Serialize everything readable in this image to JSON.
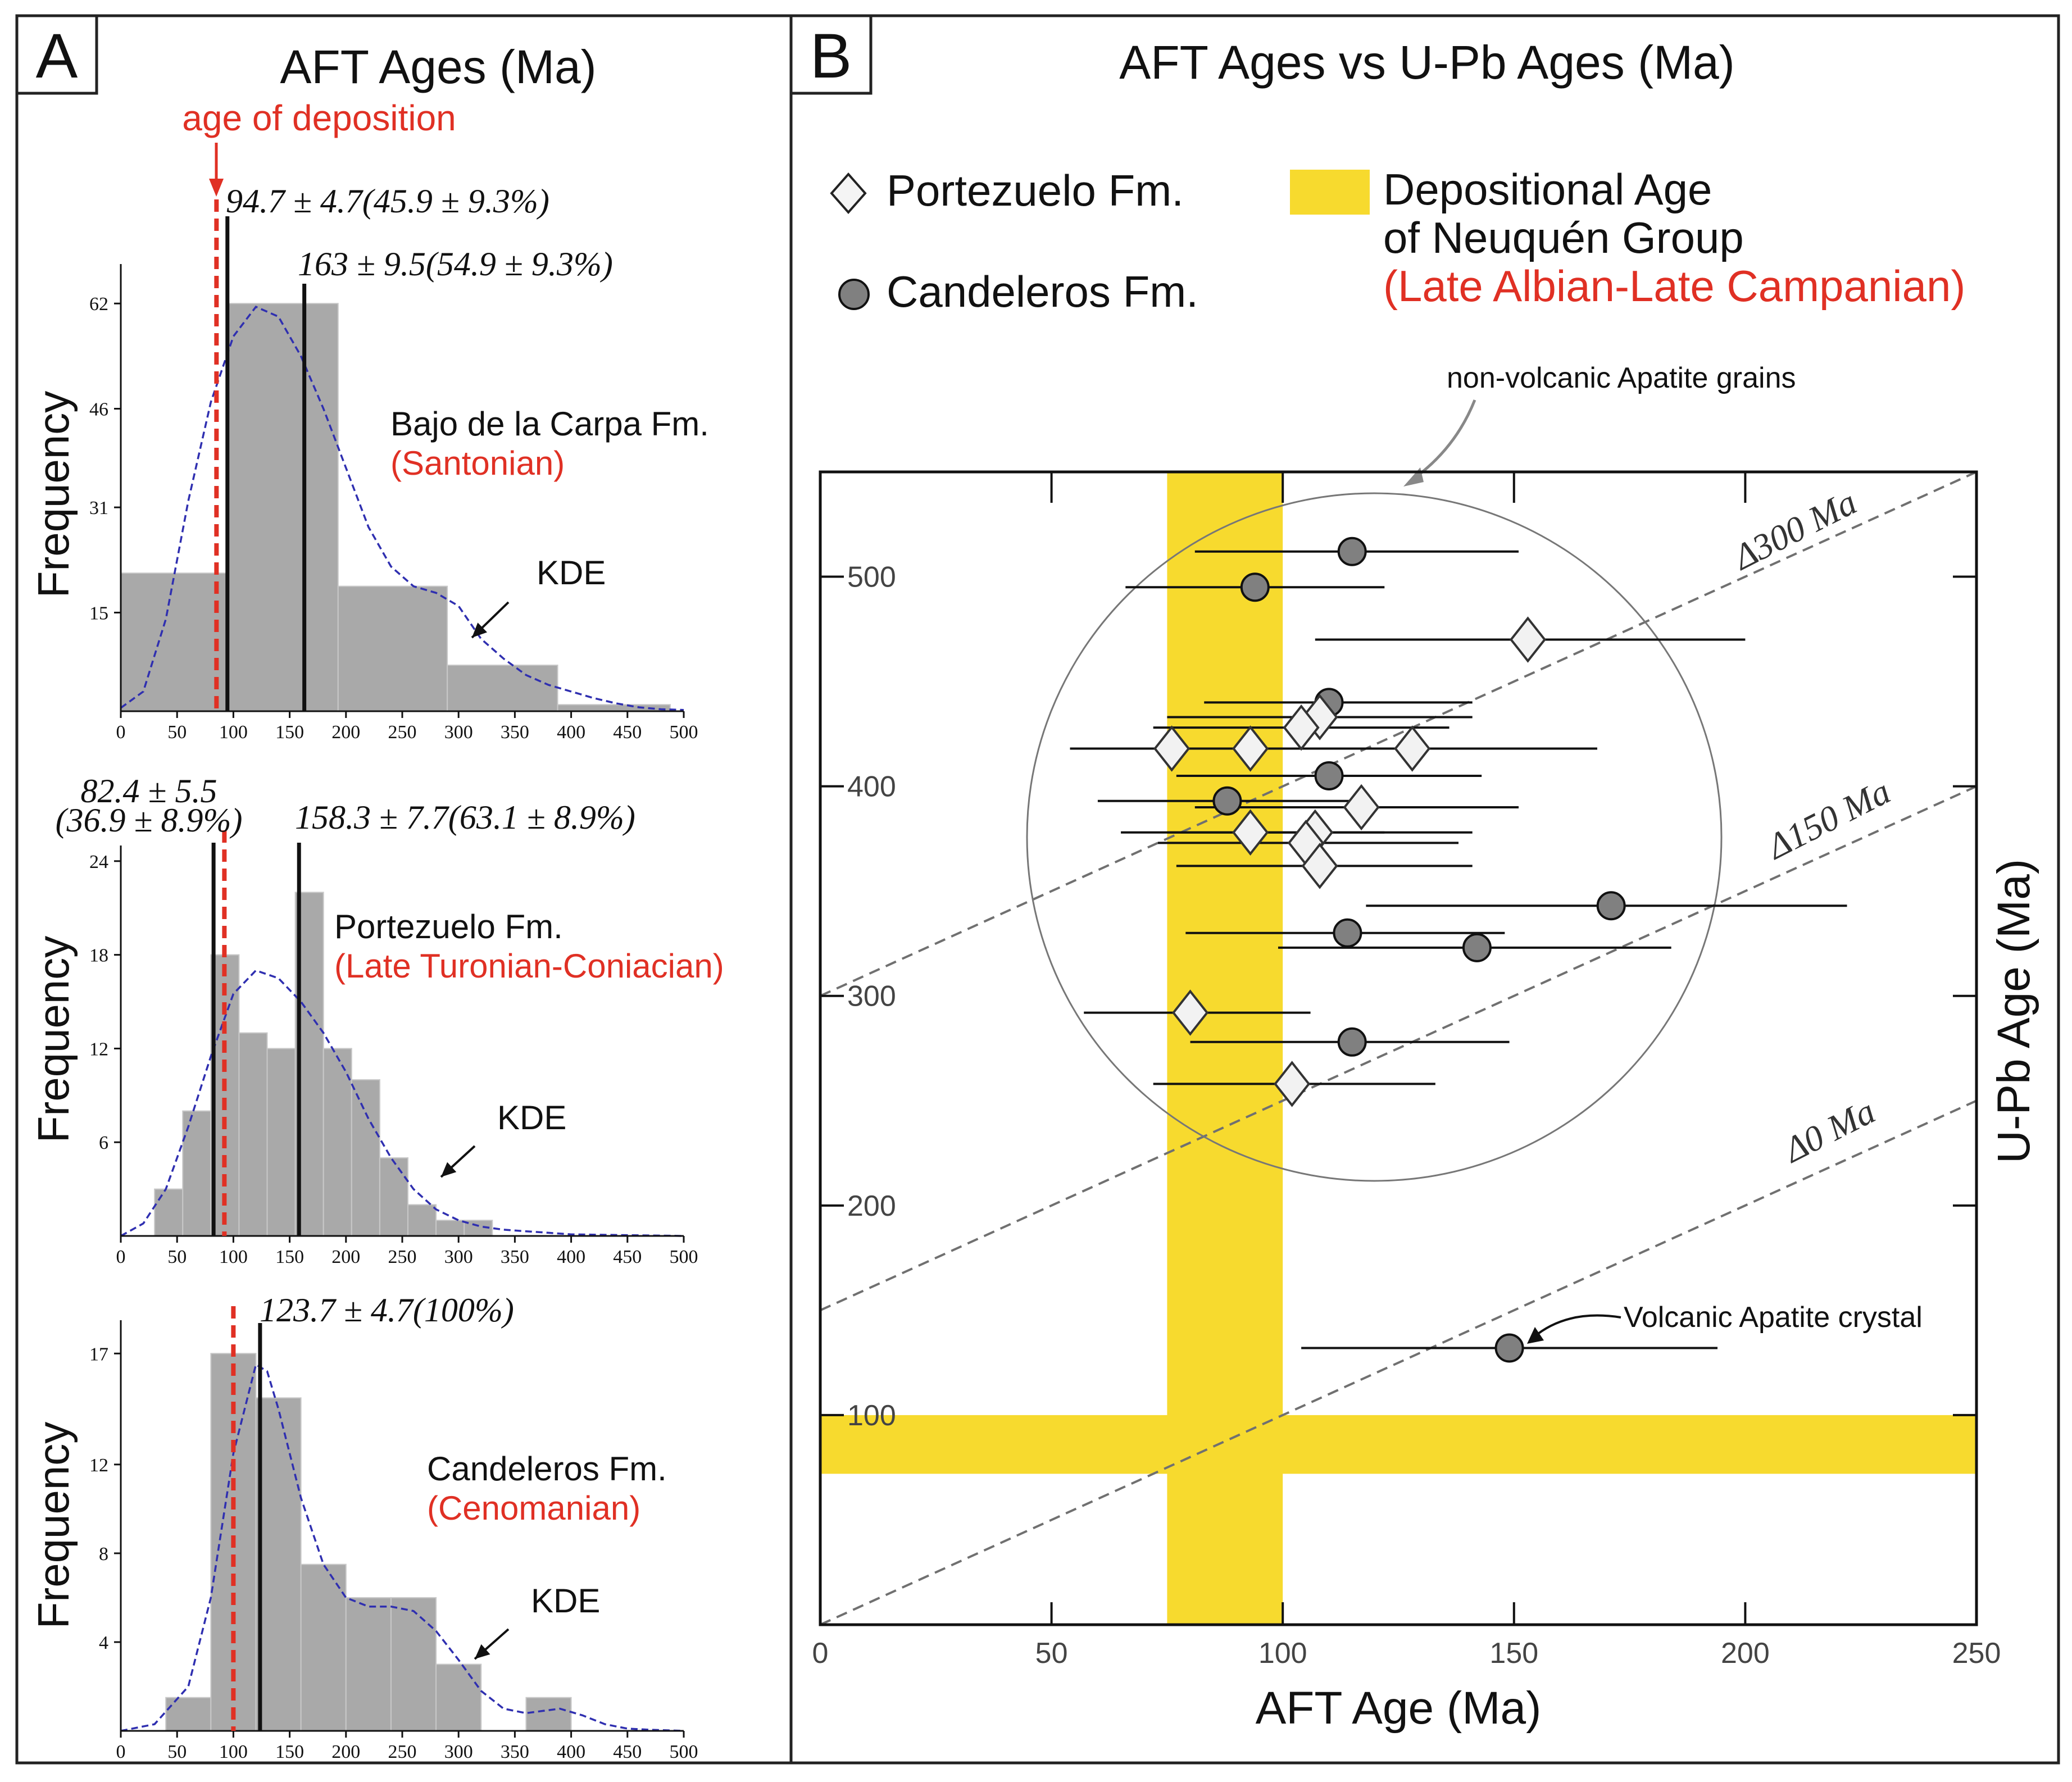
{
  "panel_a": {
    "letter": "A",
    "title": "AFT Ages  (Ma)",
    "deposition_label": "age of deposition",
    "frequency_label": "Frequency",
    "kde_label": "KDE"
  },
  "panel_b": {
    "letter": "B",
    "title": "AFT Ages vs U-Pb Ages (Ma)",
    "legend": {
      "portezuelo": "Portezuelo Fm.",
      "candeleros": "Candeleros Fm.",
      "dep_line1": "Depositional Age",
      "dep_line2": "of Neuquén Group",
      "dep_line3": "(Late Albian-Late Campanian)"
    },
    "nonvolcanic_label": "non-volcanic Apatite grains",
    "volcanic_label": "Volcanic Apatite crystal"
  },
  "colors": {
    "red": "#e03024",
    "yellow": "#f7da2e",
    "bar_gray": "#a9a9a9",
    "kde_blue": "#2f2fb0",
    "dot_gray": "#808080",
    "dash_gray": "#707070"
  },
  "chart_data": [
    {
      "type": "bar",
      "id": "hist_bajo",
      "title": "Bajo de la Carpa Fm.",
      "subtitle": "(Santonian)",
      "xlabel": "",
      "ylabel": "Frequency",
      "xlim": [
        0,
        500
      ],
      "ylim": [
        0,
        68
      ],
      "xticks": [
        0,
        50,
        100,
        150,
        200,
        250,
        300,
        350,
        400,
        450,
        500
      ],
      "yticks": [
        15,
        31,
        46,
        62
      ],
      "bins": [
        {
          "x0": 0,
          "x1": 94,
          "count": 21
        },
        {
          "x0": 94,
          "x1": 193,
          "count": 62
        },
        {
          "x0": 193,
          "x1": 290,
          "count": 19
        },
        {
          "x0": 290,
          "x1": 388,
          "count": 7
        },
        {
          "x0": 388,
          "x1": 488,
          "count": 1
        }
      ],
      "kde": [
        [
          0,
          0.5
        ],
        [
          20,
          3
        ],
        [
          40,
          14
        ],
        [
          60,
          32
        ],
        [
          80,
          47
        ],
        [
          100,
          57
        ],
        [
          120,
          61.5
        ],
        [
          140,
          60
        ],
        [
          160,
          54
        ],
        [
          180,
          46
        ],
        [
          200,
          37
        ],
        [
          220,
          28
        ],
        [
          240,
          22
        ],
        [
          260,
          19
        ],
        [
          280,
          18
        ],
        [
          300,
          16
        ],
        [
          320,
          11
        ],
        [
          340,
          8
        ],
        [
          360,
          5.5
        ],
        [
          380,
          4
        ],
        [
          400,
          3
        ],
        [
          420,
          2
        ],
        [
          440,
          1.2
        ],
        [
          460,
          0.6
        ],
        [
          480,
          0.3
        ],
        [
          500,
          0.2
        ]
      ],
      "deposition_age": 85,
      "peaks": [
        {
          "age": 94.7,
          "label": "94.7 ± 4.7(45.9 ± 9.3%)"
        },
        {
          "age": 163,
          "label": "163 ± 9.5(54.9 ± 9.3%)"
        }
      ]
    },
    {
      "type": "bar",
      "id": "hist_portezuelo",
      "title": "Portezuelo Fm.",
      "subtitle": "(Late Turonian-Coniacian)",
      "xlabel": "",
      "ylabel": "Frequency",
      "xlim": [
        0,
        500
      ],
      "ylim": [
        0,
        25
      ],
      "xticks": [
        0,
        50,
        100,
        150,
        200,
        250,
        300,
        350,
        400,
        450,
        500
      ],
      "yticks": [
        6,
        12,
        18,
        24
      ],
      "bins": [
        {
          "x0": 30,
          "x1": 55,
          "count": 3
        },
        {
          "x0": 55,
          "x1": 80,
          "count": 8
        },
        {
          "x0": 80,
          "x1": 105,
          "count": 18
        },
        {
          "x0": 105,
          "x1": 130,
          "count": 13
        },
        {
          "x0": 130,
          "x1": 155,
          "count": 12
        },
        {
          "x0": 155,
          "x1": 180,
          "count": 22
        },
        {
          "x0": 180,
          "x1": 205,
          "count": 12
        },
        {
          "x0": 205,
          "x1": 230,
          "count": 10
        },
        {
          "x0": 230,
          "x1": 255,
          "count": 5
        },
        {
          "x0": 255,
          "x1": 280,
          "count": 2
        },
        {
          "x0": 280,
          "x1": 305,
          "count": 1
        },
        {
          "x0": 305,
          "x1": 330,
          "count": 1
        }
      ],
      "kde": [
        [
          0,
          0
        ],
        [
          20,
          0.8
        ],
        [
          40,
          3
        ],
        [
          60,
          7
        ],
        [
          80,
          11.5
        ],
        [
          100,
          15.5
        ],
        [
          120,
          17
        ],
        [
          140,
          16.5
        ],
        [
          160,
          15
        ],
        [
          180,
          13
        ],
        [
          200,
          10.5
        ],
        [
          220,
          7.5
        ],
        [
          240,
          5
        ],
        [
          260,
          3
        ],
        [
          280,
          1.7
        ],
        [
          300,
          1
        ],
        [
          320,
          0.6
        ],
        [
          340,
          0.4
        ],
        [
          360,
          0.3
        ],
        [
          380,
          0.2
        ],
        [
          400,
          0.1
        ],
        [
          450,
          0.05
        ],
        [
          500,
          0
        ]
      ],
      "deposition_age": 92,
      "peaks": [
        {
          "age": 82.4,
          "label_line1": "82.4 ± 5.5",
          "label_line2": "(36.9 ± 8.9%)"
        },
        {
          "age": 158.3,
          "label": "158.3 ± 7.7(63.1 ± 8.9%)"
        }
      ]
    },
    {
      "type": "bar",
      "id": "hist_candeleros",
      "title": "Candeleros Fm.",
      "subtitle": "(Cenomanian)",
      "xlabel": "",
      "ylabel": "Frequency",
      "xlim": [
        0,
        500
      ],
      "ylim": [
        0,
        18.5
      ],
      "xticks": [
        0,
        50,
        100,
        150,
        200,
        250,
        300,
        350,
        400,
        450,
        500
      ],
      "yticks": [
        4,
        8,
        12,
        17
      ],
      "bins": [
        {
          "x0": 40,
          "x1": 80,
          "count": 1.5
        },
        {
          "x0": 80,
          "x1": 120,
          "count": 17
        },
        {
          "x0": 120,
          "x1": 160,
          "count": 15
        },
        {
          "x0": 160,
          "x1": 200,
          "count": 7.5
        },
        {
          "x0": 200,
          "x1": 240,
          "count": 6
        },
        {
          "x0": 240,
          "x1": 280,
          "count": 6
        },
        {
          "x0": 280,
          "x1": 320,
          "count": 3
        },
        {
          "x0": 320,
          "x1": 360,
          "count": 0
        },
        {
          "x0": 360,
          "x1": 400,
          "count": 1.5
        }
      ],
      "kde": [
        [
          0,
          0
        ],
        [
          30,
          0.3
        ],
        [
          60,
          2
        ],
        [
          80,
          6
        ],
        [
          100,
          12.5
        ],
        [
          120,
          16.5
        ],
        [
          130,
          16.2
        ],
        [
          140,
          14.5
        ],
        [
          160,
          10.5
        ],
        [
          180,
          7.5
        ],
        [
          200,
          6
        ],
        [
          220,
          5.6
        ],
        [
          240,
          5.6
        ],
        [
          260,
          5.4
        ],
        [
          280,
          4.5
        ],
        [
          300,
          3.2
        ],
        [
          320,
          1.8
        ],
        [
          340,
          1
        ],
        [
          360,
          0.8
        ],
        [
          375,
          0.9
        ],
        [
          390,
          1
        ],
        [
          410,
          0.7
        ],
        [
          430,
          0.3
        ],
        [
          450,
          0.1
        ],
        [
          470,
          0.05
        ],
        [
          500,
          0
        ]
      ],
      "deposition_age": 100,
      "peaks": [
        {
          "age": 123.7,
          "label": "123.7 ± 4.7(100%)"
        }
      ]
    },
    {
      "type": "scatter",
      "id": "scatter_aft_upb",
      "title": "AFT Ages vs U-Pb Ages (Ma)",
      "xlabel": "AFT Age (Ma)",
      "ylabel": "U-Pb Age (Ma)",
      "xlim": [
        0,
        250
      ],
      "ylim": [
        0,
        550
      ],
      "xticks": [
        0,
        50,
        100,
        150,
        200,
        250
      ],
      "yticks": [
        100,
        200,
        300,
        400,
        500
      ],
      "depositional_band_x": [
        75,
        100
      ],
      "depositional_band_y": [
        72,
        100
      ],
      "reference_lines": [
        {
          "label": "Δ300 Ma",
          "offset": 300
        },
        {
          "label": "Δ150 Ma",
          "offset": 150
        },
        {
          "label": "Δ0 Ma",
          "offset": 0
        }
      ],
      "series": [
        {
          "name": "Candeleros Fm.",
          "marker": "circle",
          "points": [
            {
              "x": 115,
              "y": 512,
              "xmin": 81,
              "xmax": 151
            },
            {
              "x": 94,
              "y": 495,
              "xmin": 66,
              "xmax": 122
            },
            {
              "x": 110,
              "y": 440,
              "xmin": 83,
              "xmax": 141
            },
            {
              "x": 110,
              "y": 405,
              "xmin": 77,
              "xmax": 143
            },
            {
              "x": 88,
              "y": 393,
              "xmin": 60,
              "xmax": 117
            },
            {
              "x": 171,
              "y": 343,
              "xmin": 118,
              "xmax": 222
            },
            {
              "x": 114,
              "y": 330,
              "xmin": 79,
              "xmax": 148
            },
            {
              "x": 142,
              "y": 323,
              "xmin": 99,
              "xmax": 184
            },
            {
              "x": 115,
              "y": 278,
              "xmin": 80,
              "xmax": 149
            },
            {
              "x": 149,
              "y": 132,
              "xmin": 104,
              "xmax": 194
            }
          ]
        },
        {
          "name": "Portezuelo Fm.",
          "marker": "diamond",
          "points": [
            {
              "x": 153,
              "y": 470,
              "xmin": 107,
              "xmax": 200
            },
            {
              "x": 108,
              "y": 433,
              "xmin": 75,
              "xmax": 141
            },
            {
              "x": 104,
              "y": 428,
              "xmin": 72,
              "xmax": 136
            },
            {
              "x": 76,
              "y": 418,
              "xmin": 54,
              "xmax": 103
            },
            {
              "x": 93,
              "y": 418,
              "xmin": 65,
              "xmax": 123
            },
            {
              "x": 128,
              "y": 418,
              "xmin": 89,
              "xmax": 168
            },
            {
              "x": 117,
              "y": 390,
              "xmin": 81,
              "xmax": 151
            },
            {
              "x": 93,
              "y": 378,
              "xmin": 65,
              "xmax": 122
            },
            {
              "x": 107,
              "y": 378,
              "xmin": 75,
              "xmax": 141
            },
            {
              "x": 105,
              "y": 373,
              "xmin": 73,
              "xmax": 138
            },
            {
              "x": 108,
              "y": 362,
              "xmin": 77,
              "xmax": 141
            },
            {
              "x": 80,
              "y": 292,
              "xmin": 57,
              "xmax": 106
            },
            {
              "x": 102,
              "y": 258,
              "xmin": 72,
              "xmax": 133
            }
          ]
        }
      ]
    }
  ]
}
